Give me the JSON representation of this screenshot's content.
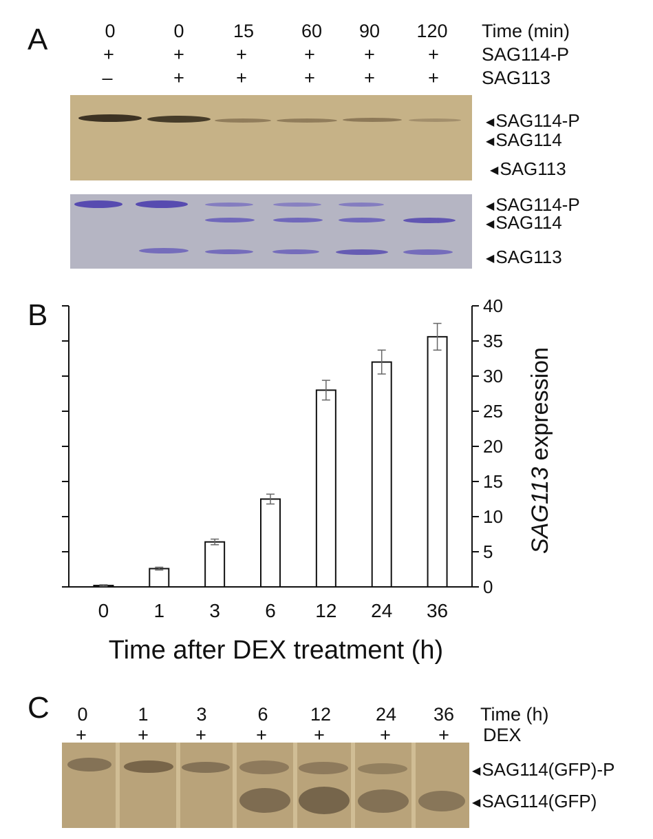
{
  "panels": {
    "A": {
      "letter": "A",
      "time_header": "Time (min)",
      "times": [
        "0",
        "0",
        "15",
        "60",
        "90",
        "120"
      ],
      "row1_label": "SAG114-P",
      "row1_signs": [
        "+",
        "+",
        "+",
        "+",
        "+",
        "+"
      ],
      "row2_label": "SAG113",
      "row2_signs": [
        "–",
        "+",
        "+",
        "+",
        "+",
        "+"
      ],
      "blot1_labels": [
        "SAG114-P",
        "SAG114",
        "SAG113"
      ],
      "blot2_labels": [
        "SAG114-P",
        "SAG114",
        "SAG113"
      ]
    },
    "B": {
      "letter": "B"
    },
    "C": {
      "letter": "C",
      "time_header": "Time (h)",
      "times": [
        "0",
        "1",
        "3",
        "6",
        "12",
        "24",
        "36"
      ],
      "row_label": "DEX",
      "row_signs": [
        "+",
        "+",
        "+",
        "+",
        "+",
        "+",
        "+"
      ],
      "blot_labels": [
        "SAG114(GFP)-P",
        "SAG114(GFP)"
      ]
    }
  },
  "chart_data": {
    "type": "bar",
    "categories": [
      "0",
      "1",
      "3",
      "6",
      "12",
      "24",
      "36"
    ],
    "values": [
      0.2,
      2.6,
      6.4,
      12.5,
      28.0,
      32.0,
      35.6
    ],
    "errors": [
      0.1,
      0.2,
      0.4,
      0.7,
      1.4,
      1.7,
      1.9
    ],
    "xlabel": "Time after DEX treatment (h)",
    "ylabel_italic": "SAG113",
    "ylabel_rest": " expression",
    "ylim": [
      0,
      40
    ],
    "yticks": [
      0,
      5,
      10,
      15,
      20,
      25,
      30,
      35,
      40
    ],
    "y_axis_side": "right",
    "grid": false
  }
}
